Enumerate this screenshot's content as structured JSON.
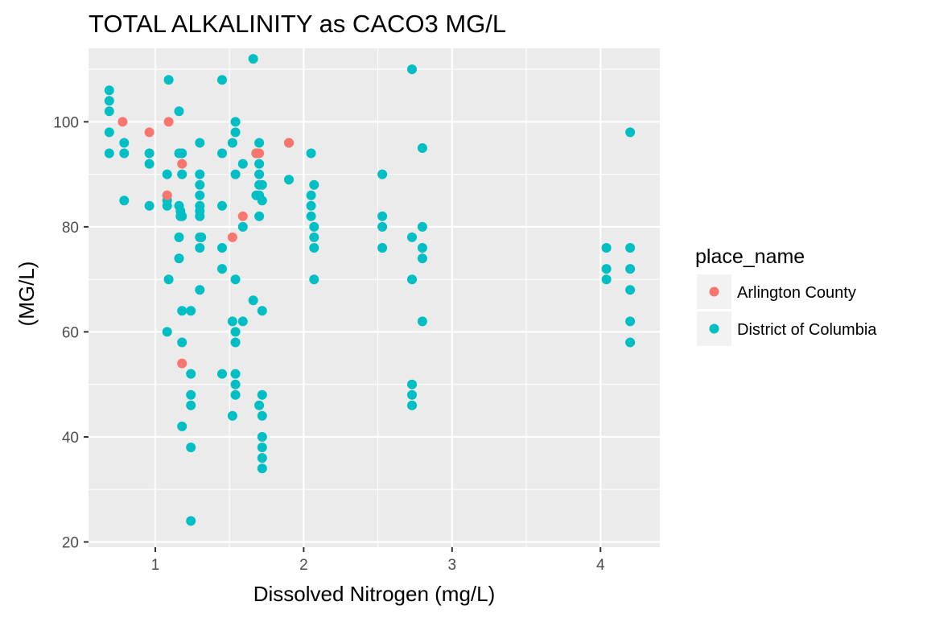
{
  "chart_data": {
    "type": "scatter",
    "title": "TOTAL ALKALINITY as CACO3 MG/L",
    "xlabel": "Dissolved Nitrogen (mg/L)",
    "ylabel": "(MG/L)",
    "xlim": [
      0.55,
      4.4
    ],
    "ylim": [
      19,
      114
    ],
    "x_ticks": [
      1,
      2,
      3,
      4
    ],
    "y_ticks": [
      20,
      40,
      60,
      80,
      100
    ],
    "grid": true,
    "legend": {
      "title": "place_name",
      "position": "right"
    },
    "series": [
      {
        "name": "Arlington County",
        "color": "#F8766D",
        "points": [
          [
            0.78,
            100
          ],
          [
            0.96,
            98
          ],
          [
            1.09,
            100
          ],
          [
            1.18,
            92
          ],
          [
            1.08,
            86
          ],
          [
            1.68,
            94
          ],
          [
            1.7,
            94
          ],
          [
            1.59,
            82
          ],
          [
            1.52,
            78
          ],
          [
            1.9,
            96
          ],
          [
            1.18,
            54
          ]
        ]
      },
      {
        "name": "District of Columbia",
        "color": "#00BFC4",
        "points": [
          [
            0.69,
            106
          ],
          [
            0.69,
            104
          ],
          [
            0.69,
            102
          ],
          [
            0.69,
            98
          ],
          [
            0.69,
            94
          ],
          [
            0.79,
            96
          ],
          [
            0.79,
            94
          ],
          [
            0.79,
            85
          ],
          [
            0.96,
            94
          ],
          [
            0.96,
            92
          ],
          [
            0.96,
            84
          ],
          [
            1.08,
            90
          ],
          [
            1.08,
            86
          ],
          [
            1.08,
            85
          ],
          [
            1.08,
            84
          ],
          [
            1.08,
            60
          ],
          [
            1.09,
            108
          ],
          [
            1.09,
            70
          ],
          [
            1.16,
            102
          ],
          [
            1.16,
            94
          ],
          [
            1.16,
            84
          ],
          [
            1.16,
            78
          ],
          [
            1.16,
            74
          ],
          [
            1.17,
            83
          ],
          [
            1.17,
            82
          ],
          [
            1.18,
            94
          ],
          [
            1.18,
            90
          ],
          [
            1.18,
            82
          ],
          [
            1.18,
            64
          ],
          [
            1.18,
            58
          ],
          [
            1.18,
            42
          ],
          [
            1.24,
            64
          ],
          [
            1.24,
            52
          ],
          [
            1.24,
            48
          ],
          [
            1.24,
            46
          ],
          [
            1.24,
            38
          ],
          [
            1.24,
            24
          ],
          [
            1.3,
            96
          ],
          [
            1.3,
            90
          ],
          [
            1.3,
            88
          ],
          [
            1.3,
            86
          ],
          [
            1.3,
            84
          ],
          [
            1.3,
            83
          ],
          [
            1.3,
            82
          ],
          [
            1.3,
            78
          ],
          [
            1.3,
            76
          ],
          [
            1.3,
            68
          ],
          [
            1.31,
            78
          ],
          [
            1.45,
            108
          ],
          [
            1.45,
            94
          ],
          [
            1.45,
            84
          ],
          [
            1.45,
            76
          ],
          [
            1.45,
            72
          ],
          [
            1.45,
            52
          ],
          [
            1.52,
            96
          ],
          [
            1.52,
            62
          ],
          [
            1.52,
            44
          ],
          [
            1.54,
            100
          ],
          [
            1.54,
            98
          ],
          [
            1.54,
            90
          ],
          [
            1.54,
            70
          ],
          [
            1.54,
            60
          ],
          [
            1.54,
            58
          ],
          [
            1.54,
            52
          ],
          [
            1.54,
            50
          ],
          [
            1.54,
            48
          ],
          [
            1.59,
            92
          ],
          [
            1.59,
            80
          ],
          [
            1.59,
            62
          ],
          [
            1.66,
            112
          ],
          [
            1.66,
            66
          ],
          [
            1.68,
            94
          ],
          [
            1.68,
            86
          ],
          [
            1.7,
            96
          ],
          [
            1.7,
            92
          ],
          [
            1.7,
            90
          ],
          [
            1.7,
            88
          ],
          [
            1.7,
            86
          ],
          [
            1.7,
            82
          ],
          [
            1.7,
            46
          ],
          [
            1.72,
            88
          ],
          [
            1.72,
            85
          ],
          [
            1.72,
            64
          ],
          [
            1.72,
            48
          ],
          [
            1.72,
            44
          ],
          [
            1.72,
            40
          ],
          [
            1.72,
            38
          ],
          [
            1.72,
            36
          ],
          [
            1.72,
            34
          ],
          [
            1.9,
            96
          ],
          [
            1.9,
            89
          ],
          [
            2.05,
            94
          ],
          [
            2.05,
            86
          ],
          [
            2.05,
            84
          ],
          [
            2.05,
            82
          ],
          [
            2.07,
            88
          ],
          [
            2.07,
            80
          ],
          [
            2.07,
            78
          ],
          [
            2.07,
            76
          ],
          [
            2.07,
            70
          ],
          [
            2.53,
            90
          ],
          [
            2.53,
            82
          ],
          [
            2.53,
            80
          ],
          [
            2.53,
            76
          ],
          [
            2.73,
            110
          ],
          [
            2.73,
            78
          ],
          [
            2.73,
            70
          ],
          [
            2.73,
            50
          ],
          [
            2.73,
            48
          ],
          [
            2.73,
            46
          ],
          [
            2.8,
            95
          ],
          [
            2.8,
            80
          ],
          [
            2.8,
            76
          ],
          [
            2.8,
            74
          ],
          [
            2.8,
            62
          ],
          [
            4.04,
            76
          ],
          [
            4.04,
            72
          ],
          [
            4.04,
            70
          ],
          [
            4.2,
            98
          ],
          [
            4.2,
            76
          ],
          [
            4.2,
            72
          ],
          [
            4.2,
            68
          ],
          [
            4.2,
            62
          ],
          [
            4.2,
            58
          ]
        ]
      }
    ]
  }
}
